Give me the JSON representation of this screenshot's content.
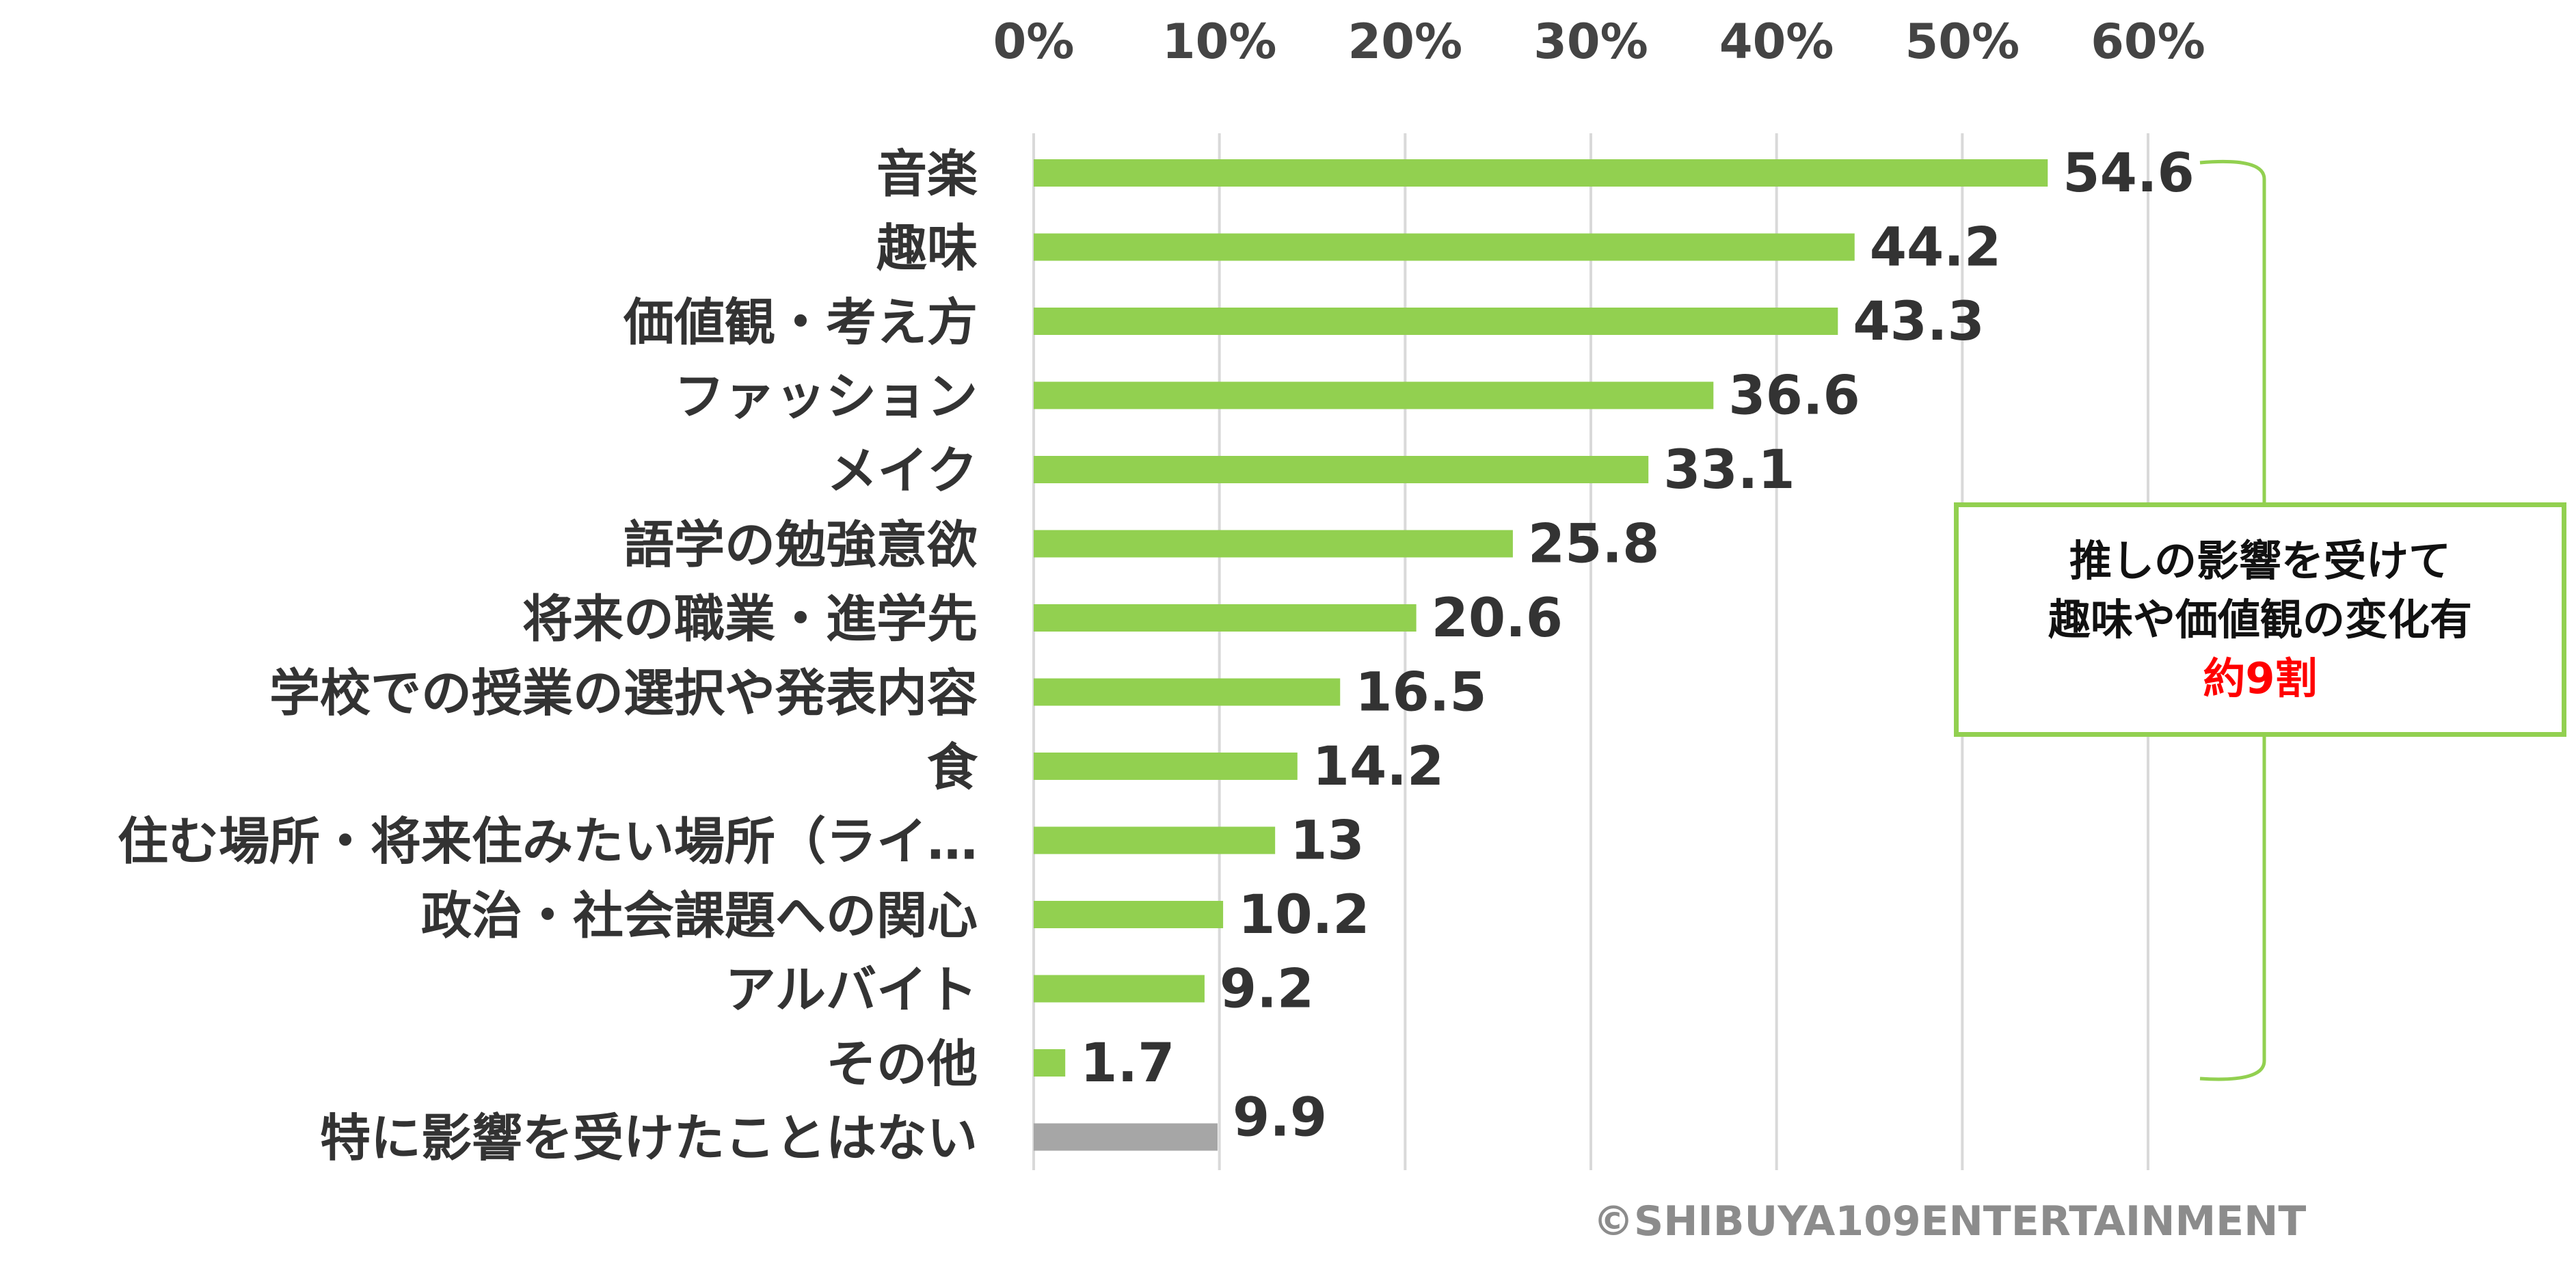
{
  "chart_data": {
    "type": "bar",
    "orientation": "horizontal",
    "categories": [
      "音楽",
      "趣味",
      "価値観・考え方",
      "ファッション",
      "メイク",
      "語学の勉強意欲",
      "将来の職業・進学先",
      "学校での授業の選択や発表内容",
      "食",
      "住む場所・将来住みたい場所（ライ…",
      "政治・社会課題への関心",
      "アルバイト",
      "その他",
      "特に影響を受けたことはない"
    ],
    "values": [
      54.6,
      44.2,
      43.3,
      36.6,
      33.1,
      25.8,
      20.6,
      16.5,
      14.2,
      13,
      10.2,
      9.2,
      1.7,
      9.9
    ],
    "value_labels": [
      "54.6",
      "44.2",
      "43.3",
      "36.6",
      "33.1",
      "25.8",
      "20.6",
      "16.5",
      "14.2",
      "13",
      "10.2",
      "9.2",
      "1.7",
      "9.9"
    ],
    "bar_colors": [
      "#92d050",
      "#92d050",
      "#92d050",
      "#92d050",
      "#92d050",
      "#92d050",
      "#92d050",
      "#92d050",
      "#92d050",
      "#92d050",
      "#92d050",
      "#92d050",
      "#92d050",
      "#a6a6a6"
    ],
    "x_ticks": [
      "0%",
      "10%",
      "20%",
      "30%",
      "40%",
      "50%",
      "60%"
    ],
    "xlim": [
      0,
      60
    ],
    "x_axis_position": "top",
    "grid": true
  },
  "callout": {
    "line1": "推しの影響を受けて",
    "line2": "趣味や価値観の変化有",
    "highlight": "約9割",
    "border_color": "#92d050",
    "highlight_color": "#ff0000"
  },
  "copyright": "©SHIBUYA109ENTERTAINMENT"
}
